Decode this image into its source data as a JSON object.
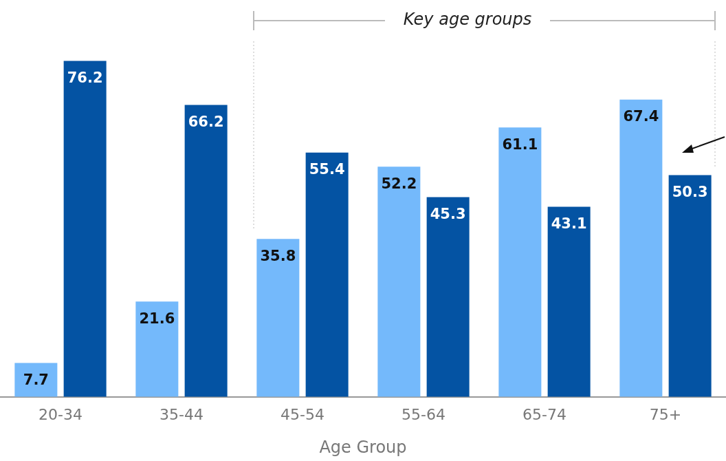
{
  "chart_data": {
    "type": "bar",
    "xlabel": "Age Group",
    "categories": [
      "20-34",
      "35-44",
      "45-54",
      "55-64",
      "65-74",
      "75+"
    ],
    "series": [
      {
        "color": "#74b9fb",
        "values": [
          7.7,
          21.6,
          35.8,
          52.2,
          61.1,
          67.4
        ]
      },
      {
        "color": "#0453a3",
        "values": [
          76.2,
          66.2,
          55.4,
          45.3,
          43.1,
          50.3
        ]
      }
    ],
    "data_labels": true,
    "legend": false,
    "grid": false,
    "annotations": [
      "Key age groups"
    ]
  }
}
